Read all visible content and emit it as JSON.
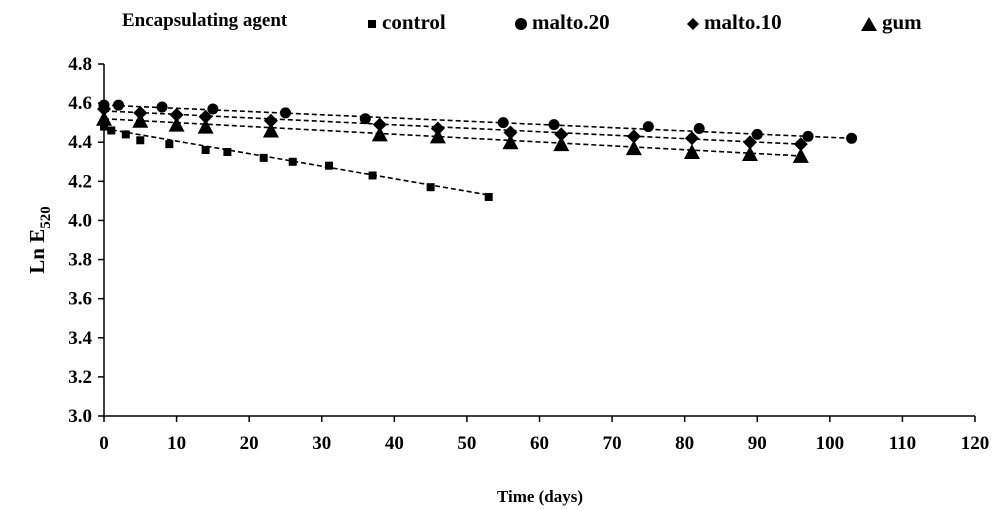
{
  "chart_data": {
    "type": "scatter",
    "title": "",
    "legend_title": "Encapsulating agent",
    "legend_position": "top",
    "xlabel": "Time (days)",
    "ylabel_main": "Ln E",
    "ylabel_sub": "520",
    "xlim": [
      0,
      120
    ],
    "ylim": [
      3.0,
      4.8
    ],
    "x_ticks": [
      0,
      10,
      20,
      30,
      40,
      50,
      60,
      70,
      80,
      90,
      100,
      110,
      120
    ],
    "y_ticks": [
      "3.0",
      "3.2",
      "3.4",
      "3.6",
      "3.8",
      "4.0",
      "4.2",
      "4.4",
      "4.6",
      "4.8"
    ],
    "grid": false,
    "trendlines": "dashed linear fit per series",
    "series": [
      {
        "name": "control",
        "marker": "square",
        "x": [
          0,
          1,
          3,
          5,
          9,
          14,
          17,
          22,
          26,
          31,
          37,
          45,
          53
        ],
        "y": [
          4.48,
          4.46,
          4.44,
          4.41,
          4.39,
          4.36,
          4.35,
          4.32,
          4.3,
          4.28,
          4.23,
          4.17,
          4.12
        ],
        "trend": {
          "x": [
            0,
            53
          ],
          "y": [
            4.47,
            4.13
          ]
        }
      },
      {
        "name": "malto.20",
        "marker": "circle",
        "x": [
          0,
          2,
          8,
          15,
          25,
          36,
          55,
          62,
          75,
          82,
          90,
          97,
          103
        ],
        "y": [
          4.59,
          4.59,
          4.58,
          4.57,
          4.55,
          4.52,
          4.5,
          4.49,
          4.48,
          4.47,
          4.44,
          4.43,
          4.42
        ],
        "trend": {
          "x": [
            0,
            103
          ],
          "y": [
            4.59,
            4.42
          ]
        }
      },
      {
        "name": "malto.10",
        "marker": "diamond",
        "x": [
          0,
          5,
          10,
          14,
          23,
          38,
          46,
          56,
          63,
          73,
          81,
          89,
          96
        ],
        "y": [
          4.57,
          4.55,
          4.54,
          4.53,
          4.51,
          4.49,
          4.47,
          4.45,
          4.44,
          4.43,
          4.42,
          4.4,
          4.39
        ],
        "trend": {
          "x": [
            0,
            96
          ],
          "y": [
            4.56,
            4.39
          ]
        }
      },
      {
        "name": "gum",
        "marker": "triangle",
        "x": [
          0,
          5,
          10,
          14,
          23,
          38,
          46,
          56,
          63,
          73,
          81,
          89,
          96
        ],
        "y": [
          4.52,
          4.51,
          4.49,
          4.48,
          4.46,
          4.44,
          4.43,
          4.4,
          4.39,
          4.37,
          4.35,
          4.34,
          4.33
        ],
        "trend": {
          "x": [
            0,
            96
          ],
          "y": [
            4.52,
            4.33
          ]
        }
      }
    ]
  }
}
